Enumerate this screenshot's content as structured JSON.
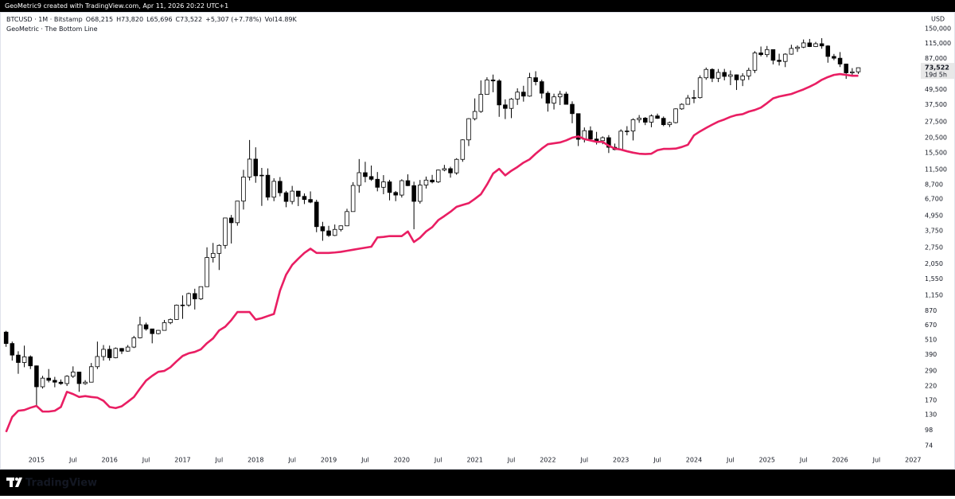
{
  "header": {
    "text": "GeoMetric9 created with TradingView.com, Apr 11, 2026 20:22 UTC+1"
  },
  "footer": {
    "brand": "TradingView"
  },
  "chart_data": {
    "type": "candlestick",
    "log_scale": true,
    "grid": false,
    "currency": "USD",
    "ohlc_legend": [
      "O68,215",
      "H73,820",
      "L65,696",
      "C73,522",
      "+5,307 (+7.78%)",
      "Vol14.89K"
    ],
    "last_price": {
      "label": "73,522",
      "countdown": "19d 5h"
    },
    "x": [
      "2014-08",
      "2014-09",
      "2014-10",
      "2014-11",
      "2014-12",
      "2015-01",
      "2015-02",
      "2015-03",
      "2015-04",
      "2015-05",
      "2015-06",
      "2015-07",
      "2015-08",
      "2015-09",
      "2015-10",
      "2015-11",
      "2015-12",
      "2016-01",
      "2016-02",
      "2016-03",
      "2016-04",
      "2016-05",
      "2016-06",
      "2016-07",
      "2016-08",
      "2016-09",
      "2016-10",
      "2016-11",
      "2016-12",
      "2017-01",
      "2017-02",
      "2017-03",
      "2017-04",
      "2017-05",
      "2017-06",
      "2017-07",
      "2017-08",
      "2017-09",
      "2017-10",
      "2017-11",
      "2017-12",
      "2018-01",
      "2018-02",
      "2018-03",
      "2018-04",
      "2018-05",
      "2018-06",
      "2018-07",
      "2018-08",
      "2018-09",
      "2018-10",
      "2018-11",
      "2018-12",
      "2019-01",
      "2019-02",
      "2019-03",
      "2019-04",
      "2019-05",
      "2019-06",
      "2019-07",
      "2019-08",
      "2019-09",
      "2019-10",
      "2019-11",
      "2019-12",
      "2020-01",
      "2020-02",
      "2020-03",
      "2020-04",
      "2020-05",
      "2020-06",
      "2020-07",
      "2020-08",
      "2020-09",
      "2020-10",
      "2020-11",
      "2020-12",
      "2021-01",
      "2021-02",
      "2021-03",
      "2021-04",
      "2021-05",
      "2021-06",
      "2021-07",
      "2021-08",
      "2021-09",
      "2021-10",
      "2021-11",
      "2021-12",
      "2022-01",
      "2022-02",
      "2022-03",
      "2022-04",
      "2022-05",
      "2022-06",
      "2022-07",
      "2022-08",
      "2022-09",
      "2022-10",
      "2022-11",
      "2022-12",
      "2023-01",
      "2023-02",
      "2023-03",
      "2023-04",
      "2023-05",
      "2023-06",
      "2023-07",
      "2023-08",
      "2023-09",
      "2023-10",
      "2023-11",
      "2023-12",
      "2024-01",
      "2024-02",
      "2024-03",
      "2024-04",
      "2024-05",
      "2024-06",
      "2024-07",
      "2024-08",
      "2024-09",
      "2024-10",
      "2024-11",
      "2024-12",
      "2025-01",
      "2025-02",
      "2025-03",
      "2025-04",
      "2025-05",
      "2025-06",
      "2025-07",
      "2025-08",
      "2025-09",
      "2025-10",
      "2025-11",
      "2025-12",
      "2026-01",
      "2026-02",
      "2026-03",
      "2026-04"
    ],
    "series": [
      {
        "name": "BTCUSD · 1M · Bitstamp",
        "up_color": "#ffffff",
        "down_color": "#000000",
        "edge_color": "#000000",
        "open": [
          589,
          478,
          387,
          338,
          375,
          318,
          217,
          254,
          244,
          236,
          230,
          263,
          284,
          230,
          236,
          313,
          377,
          430,
          369,
          437,
          416,
          448,
          531,
          673,
          624,
          573,
          608,
          700,
          742,
          964,
          965,
          1190,
          1080,
          1350,
          2300,
          2480,
          2870,
          4730,
          4340,
          6440,
          10000,
          13860,
          10220,
          10330,
          6920,
          9240,
          7500,
          6400,
          7730,
          7020,
          6630,
          6320,
          4040,
          3740,
          3440,
          3840,
          4100,
          5320,
          8570,
          10820,
          10080,
          9590,
          8290,
          9150,
          7540,
          7190,
          9350,
          8540,
          6410,
          8630,
          9450,
          9140,
          11350,
          11650,
          10780,
          13800,
          19700,
          29000,
          33100,
          45200,
          58800,
          57800,
          37300,
          35000,
          41500,
          47100,
          43800,
          61300,
          57000,
          46200,
          38500,
          43200,
          45500,
          37700,
          31800,
          19900,
          23300,
          20000,
          19400,
          20500,
          17200,
          16500,
          23100,
          23150,
          28500,
          29300,
          27200,
          30500,
          29200,
          26000,
          27000,
          34700,
          37700,
          42300,
          42600,
          61200,
          71300,
          60700,
          67500,
          62800,
          64600,
          59000,
          63300,
          70200,
          96400,
          93400,
          102400,
          84300,
          82500,
          94200,
          104600,
          107100,
          115700,
          108200,
          114000,
          109500,
          90400,
          87500,
          78700,
          67000,
          68215
        ],
        "high": [
          603,
          495,
          415,
          460,
          385,
          320,
          265,
          300,
          260,
          248,
          268,
          315,
          285,
          245,
          335,
          495,
          465,
          460,
          445,
          440,
          465,
          550,
          780,
          700,
          627,
          612,
          735,
          755,
          975,
          1150,
          1210,
          1300,
          1350,
          2770,
          3000,
          2920,
          4750,
          5000,
          6470,
          11400,
          19660,
          17200,
          11800,
          11700,
          9770,
          9990,
          7760,
          8500,
          7760,
          7410,
          7690,
          6600,
          4410,
          4100,
          4200,
          4130,
          5600,
          9100,
          13880,
          13200,
          12330,
          10950,
          10350,
          9500,
          7750,
          9590,
          10500,
          9180,
          9470,
          10080,
          10390,
          11440,
          12480,
          12070,
          14100,
          19900,
          29300,
          42000,
          58350,
          61780,
          64900,
          59600,
          41300,
          42300,
          50500,
          52900,
          67000,
          69000,
          59100,
          47900,
          45800,
          48200,
          47400,
          39800,
          31900,
          24700,
          25200,
          22800,
          21000,
          21500,
          18400,
          23900,
          25300,
          29200,
          31000,
          29900,
          31400,
          31800,
          30200,
          27500,
          35000,
          38400,
          44700,
          49000,
          64000,
          73800,
          72800,
          71900,
          72000,
          70000,
          65100,
          66500,
          73600,
          99500,
          108300,
          109400,
          102500,
          95000,
          95800,
          111900,
          110500,
          123200,
          124400,
          117900,
          126200,
          111000,
          94600,
          97900,
          79300,
          73000,
          73820
        ],
        "low": [
          450,
          350,
          275,
          310,
          300,
          152,
          210,
          235,
          215,
          225,
          220,
          255,
          198,
          225,
          236,
          300,
          350,
          350,
          365,
          395,
          412,
          440,
          525,
          605,
          480,
          565,
          605,
          680,
          740,
          750,
          935,
          890,
          1060,
          1350,
          2100,
          1830,
          2700,
          2970,
          4110,
          5520,
          9400,
          9000,
          5900,
          6530,
          6430,
          7030,
          5760,
          6070,
          5880,
          6100,
          6200,
          3650,
          3120,
          3350,
          3400,
          3700,
          4080,
          5320,
          7500,
          9070,
          9320,
          7700,
          7300,
          6530,
          6430,
          6870,
          8470,
          3850,
          6150,
          8100,
          8900,
          8970,
          11100,
          9880,
          10420,
          13200,
          17600,
          28100,
          32300,
          45000,
          47000,
          30000,
          28800,
          29300,
          37300,
          39600,
          43300,
          53300,
          42000,
          33000,
          34300,
          37200,
          37700,
          26700,
          17600,
          18800,
          19600,
          18100,
          18200,
          15500,
          16300,
          16500,
          21400,
          19500,
          26900,
          25800,
          24800,
          28900,
          25300,
          24900,
          26600,
          34100,
          37600,
          38500,
          41900,
          59000,
          56600,
          56600,
          58400,
          53500,
          49000,
          52600,
          58900,
          66800,
          90500,
          89200,
          78200,
          76600,
          74400,
          93300,
          98200,
          105200,
          107300,
          107300,
          104000,
          80600,
          84400,
          74500,
          60000,
          63000,
          65696
        ],
        "close": [
          478,
          387,
          338,
          375,
          318,
          217,
          254,
          244,
          236,
          230,
          263,
          284,
          230,
          236,
          313,
          377,
          430,
          369,
          437,
          416,
          448,
          531,
          673,
          624,
          573,
          608,
          700,
          742,
          964,
          965,
          1190,
          1080,
          1350,
          2300,
          2480,
          2870,
          4730,
          4340,
          6440,
          10000,
          13860,
          10220,
          10330,
          6920,
          9240,
          7500,
          6400,
          7730,
          7020,
          6630,
          6320,
          4040,
          3740,
          3440,
          3840,
          4100,
          5320,
          8570,
          10820,
          10080,
          9590,
          8290,
          9150,
          7540,
          7190,
          9350,
          8540,
          6410,
          8630,
          9450,
          9140,
          11350,
          11650,
          10780,
          13800,
          19700,
          29000,
          33100,
          45200,
          58800,
          57800,
          37300,
          35000,
          41500,
          47100,
          43800,
          61300,
          57000,
          46200,
          38500,
          43200,
          45500,
          37700,
          31800,
          19900,
          23300,
          20000,
          19400,
          20500,
          17200,
          16500,
          23100,
          23150,
          28500,
          29300,
          27200,
          30500,
          29200,
          26000,
          27000,
          34700,
          37700,
          42300,
          42600,
          61200,
          71300,
          60700,
          67500,
          62800,
          64600,
          59000,
          63300,
          70200,
          96400,
          93400,
          102400,
          84300,
          82500,
          94200,
          104600,
          107100,
          115700,
          108200,
          114000,
          109500,
          90400,
          87500,
          78700,
          67000,
          68215,
          73522
        ]
      },
      {
        "name": "GeoMetric · The Bottom Line",
        "color": "#e91e63",
        "values": [
          95,
          125,
          140,
          142,
          148,
          153,
          138,
          138,
          140,
          150,
          198,
          190,
          180,
          183,
          180,
          178,
          168,
          150,
          147,
          152,
          165,
          180,
          210,
          243,
          265,
          285,
          290,
          310,
          345,
          381,
          400,
          410,
          430,
          481,
          525,
          607,
          650,
          733,
          849,
          850,
          850,
          740,
          760,
          790,
          820,
          1256,
          1680,
          2010,
          2250,
          2500,
          2700,
          2500,
          2500,
          2500,
          2520,
          2550,
          2600,
          2650,
          2700,
          2750,
          2800,
          3320,
          3350,
          3400,
          3400,
          3400,
          3700,
          3050,
          3300,
          3700,
          4000,
          4550,
          4900,
          5300,
          5800,
          6000,
          6200,
          6700,
          7300,
          8700,
          10650,
          11600,
          10300,
          11200,
          12000,
          13000,
          13800,
          15300,
          16800,
          18200,
          18500,
          18800,
          19500,
          20500,
          21000,
          20000,
          19500,
          19000,
          19000,
          17700,
          16800,
          16500,
          16000,
          15600,
          15300,
          15200,
          15300,
          16300,
          16700,
          16700,
          16800,
          17300,
          18000,
          21400,
          23000,
          24500,
          26000,
          27500,
          28600,
          30000,
          31000,
          31500,
          33000,
          34000,
          35500,
          38500,
          42000,
          43500,
          44500,
          45500,
          47500,
          49500,
          52000,
          55000,
          59000,
          62000,
          64500,
          65500,
          64500,
          63500,
          63500
        ]
      }
    ],
    "xlim": [
      "2014-07",
      "2027-02"
    ],
    "xticks": [
      {
        "value": "2015-01",
        "label": "2015"
      },
      {
        "value": "2015-07",
        "label": "Jul"
      },
      {
        "value": "2016-01",
        "label": "2016"
      },
      {
        "value": "2016-07",
        "label": "Jul"
      },
      {
        "value": "2017-01",
        "label": "2017"
      },
      {
        "value": "2017-07",
        "label": "Jul"
      },
      {
        "value": "2018-01",
        "label": "2018"
      },
      {
        "value": "2018-07",
        "label": "Jul"
      },
      {
        "value": "2019-01",
        "label": "2019"
      },
      {
        "value": "2019-07",
        "label": "Jul"
      },
      {
        "value": "2020-01",
        "label": "2020"
      },
      {
        "value": "2020-07",
        "label": "Jul"
      },
      {
        "value": "2021-01",
        "label": "2021"
      },
      {
        "value": "2021-07",
        "label": "Jul"
      },
      {
        "value": "2022-01",
        "label": "2022"
      },
      {
        "value": "2022-07",
        "label": "Jul"
      },
      {
        "value": "2023-01",
        "label": "2023"
      },
      {
        "value": "2023-07",
        "label": "Jul"
      },
      {
        "value": "2024-01",
        "label": "2024"
      },
      {
        "value": "2024-07",
        "label": "Jul"
      },
      {
        "value": "2025-01",
        "label": "2025"
      },
      {
        "value": "2025-07",
        "label": "Jul"
      },
      {
        "value": "2026-01",
        "label": "2026"
      },
      {
        "value": "2026-07",
        "label": "Jul"
      },
      {
        "value": "2027-01",
        "label": "2027"
      }
    ],
    "ylim": [
      64,
      184000
    ],
    "yticks": [
      {
        "value": 150000,
        "label": "150,000"
      },
      {
        "value": 115000,
        "label": "115,000"
      },
      {
        "value": 87000,
        "label": "87,000"
      },
      {
        "value": 49500,
        "label": "49,500"
      },
      {
        "value": 37500,
        "label": "37,500"
      },
      {
        "value": 27500,
        "label": "27,500"
      },
      {
        "value": 20500,
        "label": "20,500"
      },
      {
        "value": 15500,
        "label": "15,500"
      },
      {
        "value": 11500,
        "label": "11,500"
      },
      {
        "value": 8700,
        "label": "8,700"
      },
      {
        "value": 6700,
        "label": "6,700"
      },
      {
        "value": 4950,
        "label": "4,950"
      },
      {
        "value": 3750,
        "label": "3,750"
      },
      {
        "value": 2750,
        "label": "2,750"
      },
      {
        "value": 2050,
        "label": "2,050"
      },
      {
        "value": 1550,
        "label": "1,550"
      },
      {
        "value": 1150,
        "label": "1,150"
      },
      870,
      670,
      510,
      390,
      290,
      220,
      170,
      130,
      98,
      74
    ]
  }
}
